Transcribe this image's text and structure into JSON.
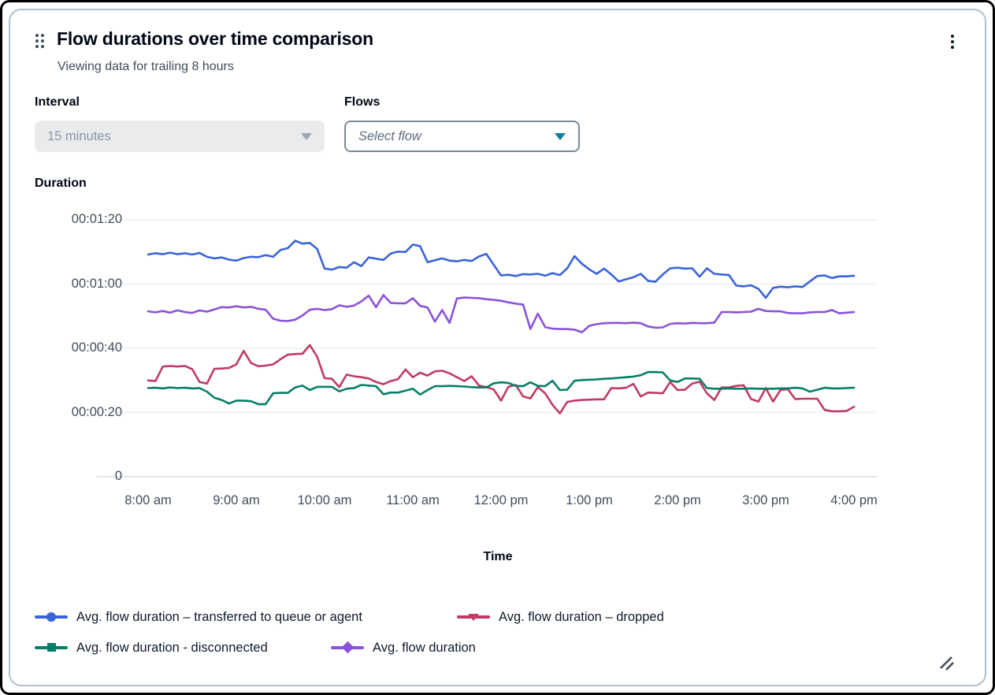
{
  "widget": {
    "title": "Flow durations over time comparison",
    "subtitle": "Viewing data for trailing 8 hours",
    "drag_handle_icon": "six-dots-drag-handle",
    "menu_icon": "vertical-ellipsis-menu",
    "resize_icon": "diagonal-resize-handle"
  },
  "controls": {
    "interval": {
      "label": "Interval",
      "value": "15 minutes",
      "state": "disabled"
    },
    "flows": {
      "label": "Flows",
      "placeholder": "Select flow",
      "state": "enabled",
      "caret_color": "#0b7da1"
    }
  },
  "chart_data": {
    "type": "line",
    "title": "Flow durations over time comparison",
    "ylabel": "Duration",
    "xlabel": "Time",
    "ylim_seconds": [
      0,
      80
    ],
    "ytick_seconds": [
      80,
      60,
      40,
      20,
      0
    ],
    "ytick_labels": [
      "00:01:20",
      "00:01:00",
      "00:00:40",
      "00:00:20",
      "0"
    ],
    "xtick_labels": [
      "8:00 am",
      "9:00 am",
      "10:00 am",
      "11:00 am",
      "12:00 pm",
      "1:00 pm",
      "2:00 pm",
      "3:00 pm",
      "4:00 pm"
    ],
    "x_interval_minutes": 5,
    "grid": true,
    "legend_position": "bottom",
    "series": [
      {
        "name": "Avg. flow duration – transferred to queue or agent",
        "color": "#3b63d9",
        "marker": "circle",
        "values_seconds": [
          69.2,
          69.6,
          69.3,
          69.8,
          69.3,
          69.6,
          69.2,
          69.7,
          68.5,
          68.0,
          68.3,
          67.6,
          67.3,
          68.1,
          68.5,
          68.4,
          69.0,
          68.5,
          70.6,
          71.2,
          73.5,
          72.6,
          72.8,
          70.9,
          64.8,
          64.5,
          65.3,
          65.1,
          66.8,
          65.6,
          68.3,
          67.9,
          67.5,
          69.5,
          70.1,
          70.0,
          72.3,
          71.8,
          66.8,
          67.4,
          68.0,
          67.3,
          67.1,
          67.5,
          67.2,
          68.6,
          69.4,
          66.0,
          62.7,
          62.9,
          62.5,
          63.1,
          63.0,
          63.2,
          62.6,
          63.4,
          62.8,
          64.9,
          68.7,
          66.3,
          64.6,
          63.2,
          64.8,
          63.0,
          60.8,
          61.5,
          62.1,
          63.2,
          61.0,
          60.7,
          63.0,
          64.9,
          65.1,
          64.8,
          64.9,
          62.3,
          64.9,
          63.2,
          63.0,
          62.8,
          59.5,
          59.3,
          59.6,
          58.5,
          55.7,
          58.8,
          59.2,
          59.0,
          59.3,
          59.1,
          60.8,
          62.5,
          62.7,
          61.9,
          62.4,
          62.4,
          62.6
        ]
      },
      {
        "name": "Avg. flow duration – dropped",
        "color": "#c03b61",
        "marker": "triangle-down",
        "values_seconds": [
          30.0,
          29.8,
          34.3,
          34.5,
          34.3,
          34.5,
          33.5,
          29.5,
          29.0,
          33.6,
          33.7,
          33.9,
          35.0,
          39.2,
          35.4,
          34.4,
          34.6,
          35.0,
          36.6,
          38.0,
          38.2,
          38.3,
          41.0,
          37.3,
          30.7,
          30.5,
          27.9,
          31.8,
          31.3,
          31.0,
          30.6,
          29.5,
          28.8,
          29.8,
          30.4,
          33.4,
          31.0,
          32.4,
          31.5,
          32.8,
          33.0,
          32.2,
          31.0,
          29.8,
          31.3,
          28.4,
          27.9,
          27.2,
          23.7,
          28.0,
          28.6,
          25.0,
          24.4,
          27.9,
          26.0,
          22.4,
          19.7,
          23.3,
          23.7,
          23.9,
          24.0,
          24.1,
          24.1,
          27.6,
          27.5,
          27.7,
          28.9,
          25.0,
          26.2,
          26.1,
          26.0,
          29.5,
          27.0,
          27.1,
          29.0,
          29.6,
          26.0,
          23.9,
          27.8,
          27.8,
          28.3,
          28.5,
          24.2,
          23.4,
          27.6,
          23.4,
          27.0,
          27.3,
          24.2,
          24.3,
          24.3,
          24.3,
          20.8,
          20.4,
          20.4,
          20.5,
          21.8
        ]
      },
      {
        "name": "Avg. flow duration - disconnected",
        "color": "#067f68",
        "marker": "square",
        "values_seconds": [
          27.6,
          27.7,
          27.5,
          27.8,
          27.6,
          27.7,
          27.5,
          27.6,
          26.5,
          24.6,
          23.9,
          22.8,
          23.7,
          23.7,
          23.5,
          22.6,
          22.6,
          26.0,
          26.1,
          26.1,
          27.8,
          28.4,
          27.0,
          28.0,
          28.0,
          28.0,
          26.6,
          27.4,
          27.6,
          28.6,
          28.4,
          28.2,
          25.7,
          26.2,
          26.2,
          26.8,
          27.4,
          25.6,
          27.0,
          28.2,
          28.2,
          28.3,
          28.2,
          28.1,
          27.9,
          27.8,
          27.8,
          29.1,
          29.4,
          29.2,
          28.3,
          28.2,
          29.4,
          28.3,
          28.2,
          29.9,
          27.0,
          27.1,
          29.9,
          30.1,
          30.2,
          30.3,
          30.5,
          30.6,
          30.8,
          31.0,
          31.2,
          31.6,
          32.6,
          32.6,
          32.5,
          30.0,
          29.5,
          30.6,
          30.6,
          30.5,
          27.6,
          27.4,
          27.4,
          27.5,
          27.4,
          27.4,
          27.5,
          27.4,
          27.4,
          27.4,
          27.5,
          27.5,
          27.7,
          27.5,
          26.5,
          27.1,
          27.7,
          27.5,
          27.5,
          27.6,
          27.7
        ]
      },
      {
        "name": "Avg. flow duration",
        "color": "#8b52d9",
        "marker": "diamond",
        "values_seconds": [
          51.5,
          51.2,
          51.6,
          51.1,
          51.8,
          51.3,
          51.0,
          51.8,
          51.4,
          52.1,
          52.8,
          52.7,
          53.1,
          52.7,
          52.9,
          52.3,
          52.0,
          49.2,
          48.6,
          48.5,
          48.9,
          50.2,
          52.0,
          52.3,
          51.9,
          52.2,
          53.4,
          52.9,
          53.3,
          54.6,
          56.4,
          52.8,
          56.6,
          54.1,
          54.0,
          54.0,
          55.6,
          53.2,
          52.7,
          48.3,
          51.9,
          47.9,
          55.5,
          55.8,
          55.7,
          55.6,
          55.3,
          55.1,
          54.8,
          54.3,
          53.9,
          53.6,
          46.0,
          50.8,
          46.6,
          46.1,
          46.0,
          46.0,
          45.8,
          45.0,
          47.0,
          47.5,
          47.8,
          47.9,
          47.9,
          47.8,
          48.0,
          47.8,
          46.8,
          46.4,
          46.5,
          47.6,
          47.8,
          47.7,
          47.9,
          47.8,
          47.8,
          48.0,
          51.3,
          51.3,
          51.2,
          51.3,
          51.4,
          52.3,
          51.6,
          51.5,
          51.5,
          51.0,
          50.9,
          50.9,
          51.2,
          51.3,
          51.3,
          51.9,
          50.9,
          51.1,
          51.3
        ]
      }
    ],
    "legend_rows": [
      [
        0,
        1
      ],
      [
        2,
        3
      ]
    ]
  },
  "colors": {
    "card_border": "#b3bfcc",
    "frame_border": "#000000",
    "title_text": "#000716",
    "secondary_text": "#414d5c",
    "gridline": "#edf0f3",
    "axis_line": "#d8dee4",
    "disabled_field_bg": "#e9ebed",
    "disabled_field_text": "#8b98a8",
    "enabled_field_border": "#7d8998",
    "flows_caret": "#0b7da1"
  }
}
